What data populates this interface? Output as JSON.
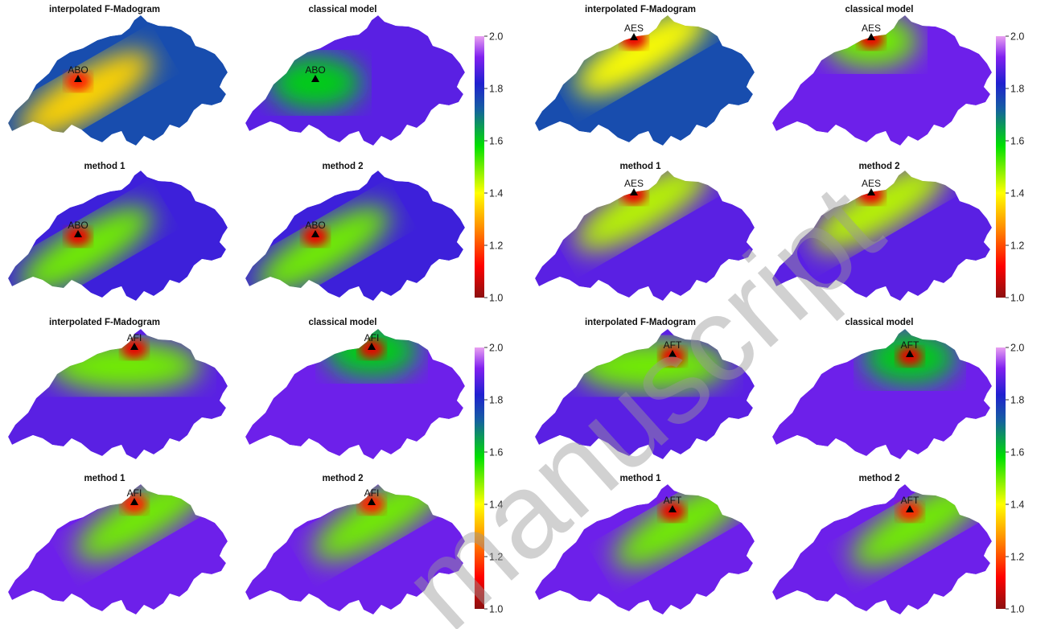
{
  "colorbar": {
    "ticks": [
      "1.0",
      "1.2",
      "1.4",
      "1.6",
      "1.8",
      "2.0"
    ],
    "tick_values": [
      1.0,
      1.2,
      1.4,
      1.6,
      1.8,
      2.0
    ],
    "range": [
      1.0,
      2.0
    ],
    "colors": [
      "#8b1010",
      "#ff0000",
      "#ff9000",
      "#ffff00",
      "#00e000",
      "#1560a0",
      "#2020d0",
      "#8020f0",
      "#e8a0f0"
    ]
  },
  "groups": [
    {
      "station": "ABO",
      "panels": [
        {
          "title": "interpolated F-Madogram",
          "station_label": "ABO",
          "base_value": 1.75,
          "features": [
            {
              "v": 1.35,
              "s": "band"
            },
            {
              "v": 1.15,
              "s": "hot"
            }
          ]
        },
        {
          "title": "classical model",
          "station_label": "ABO",
          "base_value": 1.88,
          "features": [
            {
              "v": 1.6,
              "s": "blob"
            }
          ]
        },
        {
          "title": "method 1",
          "station_label": "ABO",
          "base_value": 1.85,
          "features": [
            {
              "v": 1.5,
              "s": "band"
            },
            {
              "v": 1.1,
              "s": "hot"
            }
          ]
        },
        {
          "title": "method 2",
          "station_label": "ABO",
          "base_value": 1.85,
          "features": [
            {
              "v": 1.5,
              "s": "band"
            },
            {
              "v": 1.1,
              "s": "hot"
            }
          ]
        }
      ]
    },
    {
      "station": "AES",
      "panels": [
        {
          "title": "interpolated F-Madogram",
          "station_label": "AES",
          "base_value": 1.75,
          "features": [
            {
              "v": 1.4,
              "s": "band"
            },
            {
              "v": 1.1,
              "s": "hot"
            }
          ]
        },
        {
          "title": "classical model",
          "station_label": "AES",
          "base_value": 1.9,
          "features": [
            {
              "v": 1.5,
              "s": "blob"
            },
            {
              "v": 1.1,
              "s": "hot"
            }
          ]
        },
        {
          "title": "method 1",
          "station_label": "AES",
          "base_value": 1.88,
          "features": [
            {
              "v": 1.45,
              "s": "band"
            },
            {
              "v": 1.1,
              "s": "hot"
            }
          ]
        },
        {
          "title": "method 2",
          "station_label": "AES",
          "base_value": 1.88,
          "features": [
            {
              "v": 1.45,
              "s": "band"
            },
            {
              "v": 1.1,
              "s": "hot"
            }
          ]
        }
      ]
    },
    {
      "station": "AFI",
      "panels": [
        {
          "title": "interpolated F-Madogram",
          "station_label": "AFI",
          "base_value": 1.88,
          "features": [
            {
              "v": 1.5,
              "s": "north"
            },
            {
              "v": 1.1,
              "s": "hot"
            }
          ]
        },
        {
          "title": "classical model",
          "station_label": "AFI",
          "base_value": 1.9,
          "features": [
            {
              "v": 1.6,
              "s": "blob"
            },
            {
              "v": 1.1,
              "s": "hot"
            }
          ]
        },
        {
          "title": "method 1",
          "station_label": "AFI",
          "base_value": 1.9,
          "features": [
            {
              "v": 1.5,
              "s": "band"
            },
            {
              "v": 1.15,
              "s": "hot"
            }
          ]
        },
        {
          "title": "method 2",
          "station_label": "AFI",
          "base_value": 1.9,
          "features": [
            {
              "v": 1.5,
              "s": "band"
            },
            {
              "v": 1.15,
              "s": "hot"
            }
          ]
        }
      ]
    },
    {
      "station": "AFT",
      "panels": [
        {
          "title": "interpolated F-Madogram",
          "station_label": "AFT",
          "base_value": 1.88,
          "features": [
            {
              "v": 1.5,
              "s": "north"
            },
            {
              "v": 1.1,
              "s": "hot"
            }
          ]
        },
        {
          "title": "classical model",
          "station_label": "AFT",
          "base_value": 1.9,
          "features": [
            {
              "v": 1.6,
              "s": "blob"
            },
            {
              "v": 1.1,
              "s": "hot"
            }
          ]
        },
        {
          "title": "method 1",
          "station_label": "AFT",
          "base_value": 1.9,
          "features": [
            {
              "v": 1.5,
              "s": "band"
            },
            {
              "v": 1.1,
              "s": "hot"
            }
          ]
        },
        {
          "title": "method 2",
          "station_label": "AFT",
          "base_value": 1.9,
          "features": [
            {
              "v": 1.5,
              "s": "band"
            },
            {
              "v": 1.15,
              "s": "hot"
            }
          ]
        }
      ]
    }
  ],
  "watermark": {
    "text": "manuscript"
  }
}
